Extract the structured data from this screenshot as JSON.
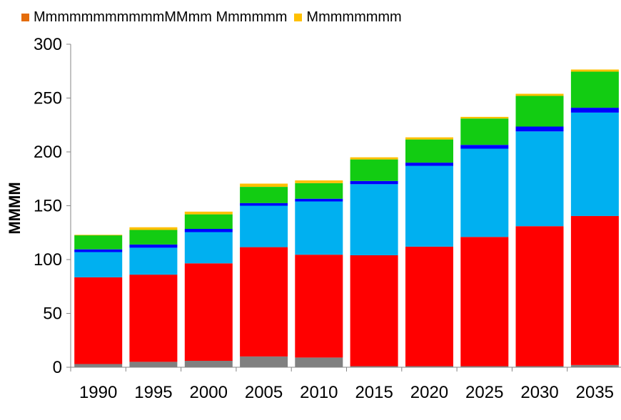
{
  "chart_data": {
    "type": "bar",
    "stacked": true,
    "categories": [
      "1990",
      "1995",
      "2000",
      "2005",
      "2010",
      "2015",
      "2020",
      "2025",
      "2030",
      "2035"
    ],
    "series": [
      {
        "values": [
          3,
          5,
          6,
          10,
          9,
          1,
          1,
          1,
          1,
          2
        ],
        "color": "#808080"
      },
      {
        "values": [
          80.5,
          81,
          90.5,
          101.5,
          95.5,
          103,
          111,
          120,
          130,
          138.5
        ],
        "color": "#ff0000"
      },
      {
        "values": [
          23.5,
          25,
          29,
          38.5,
          49.5,
          66,
          75,
          82,
          88,
          96
        ],
        "color": "#00b0f0"
      },
      {
        "values": [
          2.5,
          3,
          3,
          2.5,
          2.5,
          3,
          3,
          3.5,
          4.5,
          4.5
        ],
        "color": "#0000ff"
      },
      {
        "name": "Mmmmmmmm",
        "values": [
          13,
          13.5,
          13.5,
          15,
          14.5,
          20,
          21.5,
          24.5,
          28.5,
          33.5
        ],
        "color": "#12cc12"
      },
      {
        "name": "MmmmmmmmmmmMMmm Mmmmmm",
        "values": [
          0.5,
          2.5,
          2.5,
          3,
          2.5,
          2,
          2,
          1.5,
          2,
          2
        ],
        "color": "#ffc000"
      }
    ],
    "legend_entries": [
      {
        "label": "MmmmmmmmmmmMMmm Mmmmmm",
        "color": "#e46c0a"
      },
      {
        "label": "Mmmmmmmm",
        "color": "#ffc000"
      }
    ],
    "ylabel": "MMMM",
    "ylim": [
      0,
      300
    ],
    "yticks": [
      0,
      50,
      100,
      150,
      200,
      250,
      300
    ],
    "grid": false,
    "legend_position": "top-left"
  }
}
